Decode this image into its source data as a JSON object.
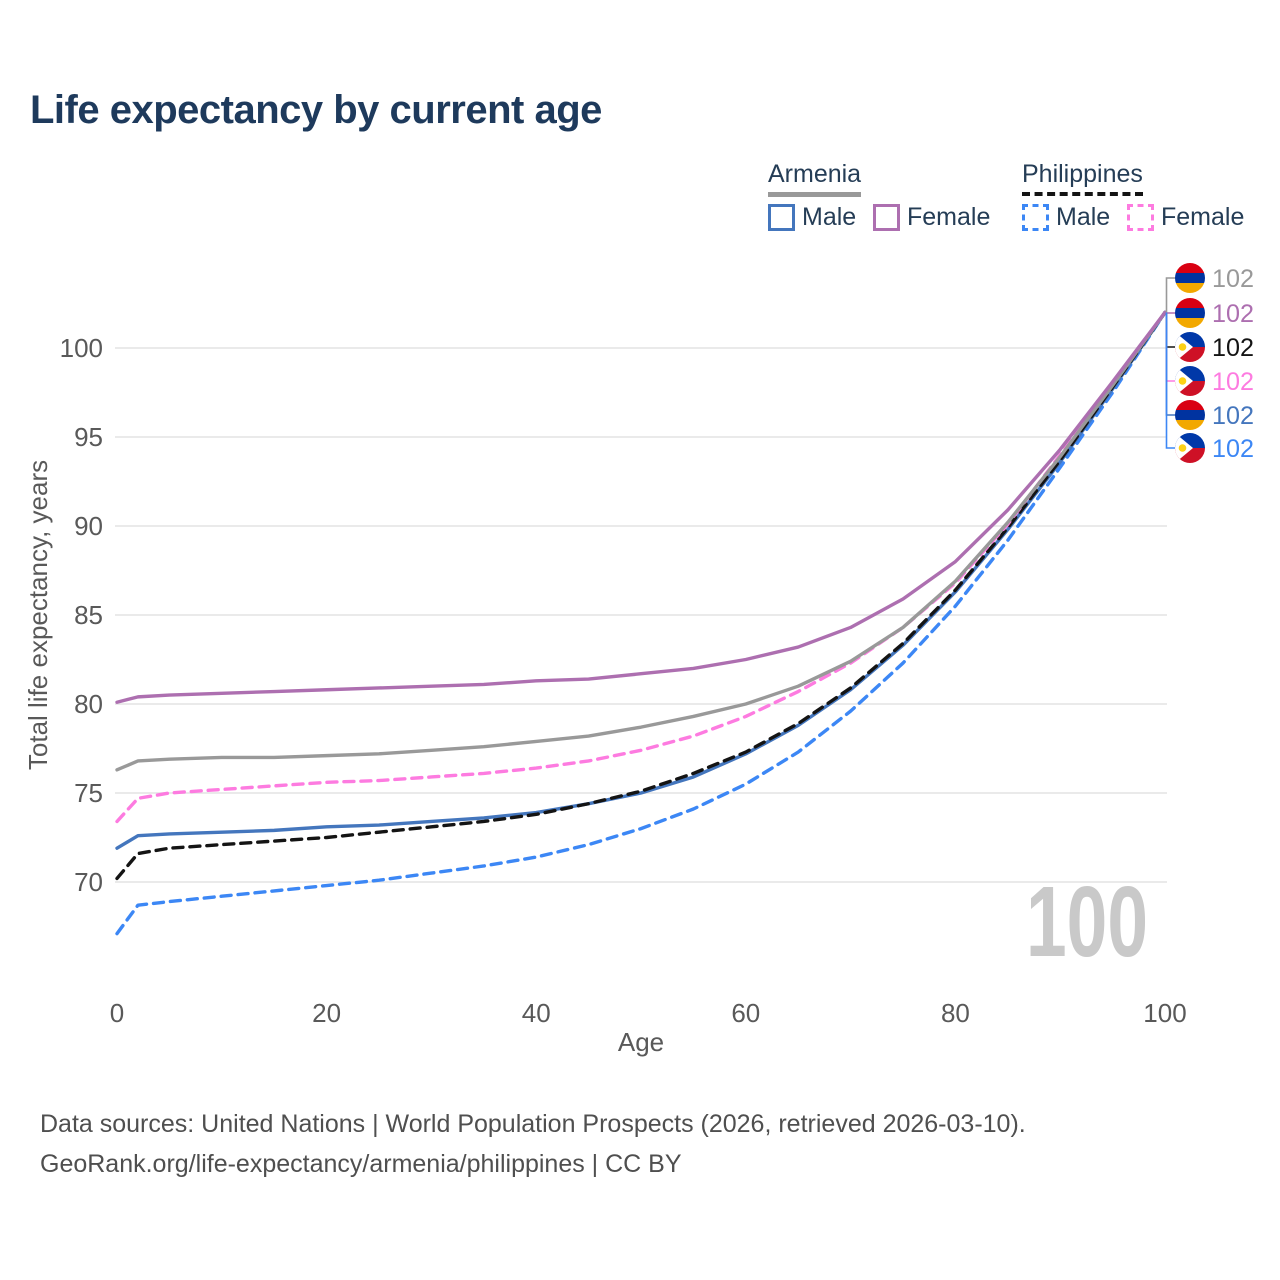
{
  "chart_data": {
    "type": "line",
    "title": "Life expectancy by current age",
    "xlabel": "Age",
    "ylabel": "Total life expectancy, years",
    "xticks": [
      0,
      20,
      40,
      60,
      80,
      100
    ],
    "yticks": [
      70,
      75,
      80,
      85,
      90,
      95,
      100
    ],
    "xlim": [
      0,
      100
    ],
    "ylim": [
      66.5,
      103
    ],
    "grid": "horizontal-only",
    "legend_position": "top-right",
    "frame_label": "100",
    "x": [
      0,
      2,
      5,
      10,
      15,
      20,
      25,
      30,
      35,
      40,
      45,
      50,
      55,
      60,
      65,
      70,
      75,
      80,
      85,
      90,
      95,
      100
    ],
    "series": [
      {
        "id": "armenia-total",
        "country": "Armenia",
        "sex": "Total",
        "color": "#999999",
        "dash": "solid",
        "end_label": "102",
        "values": [
          76.3,
          76.8,
          76.9,
          77.0,
          77.0,
          77.1,
          77.2,
          77.4,
          77.6,
          77.9,
          78.2,
          78.7,
          79.3,
          80.0,
          81.0,
          82.4,
          84.3,
          86.9,
          90.2,
          93.9,
          97.9,
          102
        ]
      },
      {
        "id": "armenia-female",
        "country": "Armenia",
        "sex": "Female",
        "color": "#ad6fb0",
        "dash": "solid",
        "end_label": "102",
        "values": [
          80.1,
          80.4,
          80.5,
          80.6,
          80.7,
          80.8,
          80.9,
          81.0,
          81.1,
          81.3,
          81.4,
          81.7,
          82.0,
          82.5,
          83.2,
          84.3,
          85.9,
          88.0,
          90.9,
          94.3,
          98.1,
          102
        ]
      },
      {
        "id": "philippines-total",
        "country": "Philippines",
        "sex": "Total",
        "color": "#141414",
        "dash": "dashed",
        "end_label": "102",
        "values": [
          70.2,
          71.6,
          71.9,
          72.1,
          72.3,
          72.5,
          72.8,
          73.1,
          73.4,
          73.8,
          74.4,
          75.1,
          76.1,
          77.3,
          78.9,
          80.9,
          83.4,
          86.4,
          89.9,
          93.7,
          97.8,
          102
        ]
      },
      {
        "id": "philippines-female",
        "country": "Philippines",
        "sex": "Female",
        "color": "#fd7be0",
        "dash": "dashed",
        "end_label": "102",
        "values": [
          73.4,
          74.7,
          75.0,
          75.2,
          75.4,
          75.6,
          75.7,
          75.9,
          76.1,
          76.4,
          76.8,
          77.4,
          78.2,
          79.3,
          80.7,
          82.3,
          84.3,
          86.8,
          90.1,
          94.0,
          98.0,
          102
        ]
      },
      {
        "id": "armenia-male",
        "country": "Armenia",
        "sex": "Male",
        "color": "#4476bd",
        "dash": "solid",
        "end_label": "102",
        "values": [
          71.9,
          72.6,
          72.7,
          72.8,
          72.9,
          73.1,
          73.2,
          73.4,
          73.6,
          73.9,
          74.4,
          75.0,
          75.9,
          77.2,
          78.8,
          80.8,
          83.3,
          86.3,
          89.8,
          93.6,
          97.7,
          102
        ]
      },
      {
        "id": "philippines-male",
        "country": "Philippines",
        "sex": "Male",
        "color": "#3c87f5",
        "dash": "dashed",
        "end_label": "102",
        "values": [
          67.1,
          68.7,
          68.9,
          69.2,
          69.5,
          69.8,
          70.1,
          70.5,
          70.9,
          71.4,
          72.1,
          73.0,
          74.1,
          75.5,
          77.3,
          79.6,
          82.3,
          85.5,
          89.2,
          93.3,
          97.5,
          102
        ]
      }
    ],
    "draw_order": [
      "philippines-male",
      "armenia-male",
      "philippines-total",
      "philippines-female",
      "armenia-total",
      "armenia-female"
    ]
  },
  "legend": {
    "groups": [
      {
        "label": "Armenia",
        "rule_style": "solid",
        "rule_color": "#999999",
        "items": [
          {
            "label": "Male",
            "color": "#4476bd",
            "style": "solid"
          },
          {
            "label": "Female",
            "color": "#ad6fb0",
            "style": "solid"
          }
        ]
      },
      {
        "label": "Philippines",
        "rule_style": "dashed",
        "rule_color": "#141414",
        "items": [
          {
            "label": "Male",
            "color": "#3c87f5",
            "style": "dashed"
          },
          {
            "label": "Female",
            "color": "#fd7be0",
            "style": "dashed"
          }
        ]
      }
    ]
  },
  "flags": {
    "armenia": [
      "#D90012",
      "#0033A0",
      "#F2A800"
    ],
    "philippines": {
      "blue": "#0038A8",
      "red": "#CE1126",
      "white": "#FFFFFF",
      "sun": "#FCD116"
    }
  },
  "footer": {
    "line1": "Data sources: United Nations | World Population Prospects (2026, retrieved 2026-03-10).",
    "line2": "GeoRank.org/life-expectancy/armenia/philippines | CC BY"
  }
}
